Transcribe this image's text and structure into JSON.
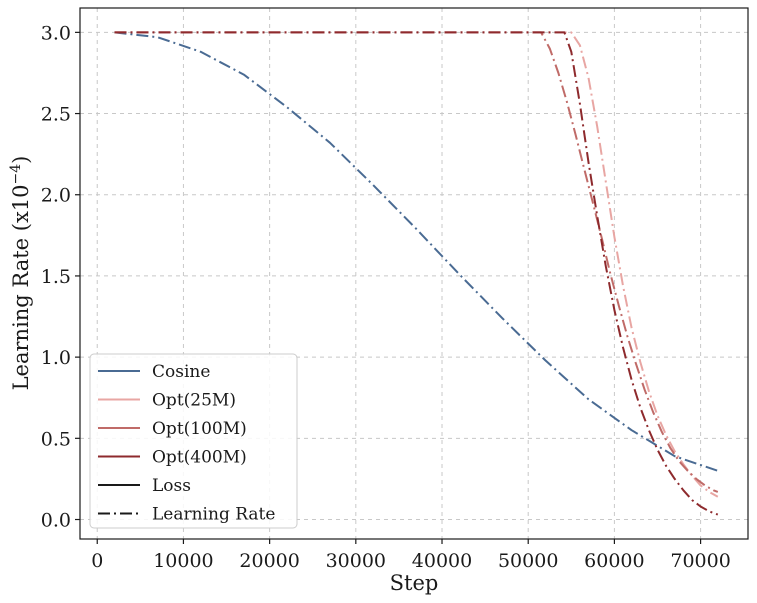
{
  "chart_data": {
    "type": "line",
    "title": "",
    "xlabel": "Step",
    "ylabel": "Learning Rate (x10",
    "ylabel_exp": "−4",
    "ylabel_close": ")",
    "xlim": [
      -2000,
      75500
    ],
    "ylim": [
      -0.12,
      3.15
    ],
    "xticks": [
      0,
      10000,
      20000,
      30000,
      40000,
      50000,
      60000,
      70000
    ],
    "yticks": [
      0.0,
      0.5,
      1.0,
      1.5,
      2.0,
      2.5,
      3.0
    ],
    "xtick_labels": [
      "0",
      "10000",
      "20000",
      "30000",
      "40000",
      "50000",
      "60000",
      "70000"
    ],
    "ytick_labels": [
      "0.0",
      "0.5",
      "1.0",
      "1.5",
      "2.0",
      "2.5",
      "3.0"
    ],
    "grid": true,
    "legend_position": "lower-left",
    "series": [
      {
        "name": "Cosine",
        "color": "#4a6b93",
        "style": "dashdot",
        "x": [
          2000,
          7000,
          12000,
          17000,
          22000,
          27000,
          32000,
          37000,
          42000,
          47000,
          52000,
          57000,
          62000,
          67000,
          72000
        ],
        "y": [
          3.0,
          2.97,
          2.88,
          2.74,
          2.54,
          2.32,
          2.06,
          1.79,
          1.51,
          1.24,
          0.98,
          0.74,
          0.55,
          0.39,
          0.3
        ]
      },
      {
        "name": "Opt(25M)",
        "color": "#e8a6a3",
        "style": "dashdot",
        "x": [
          2000,
          55000,
          56000,
          57000,
          58000,
          59000,
          60000,
          61000,
          62000,
          63000,
          64000,
          65000,
          66000,
          67000,
          68000,
          69000,
          70000,
          71000,
          72000
        ],
        "y": [
          3.0,
          3.0,
          2.92,
          2.72,
          2.42,
          2.08,
          1.74,
          1.44,
          1.18,
          0.97,
          0.79,
          0.64,
          0.52,
          0.42,
          0.34,
          0.27,
          0.21,
          0.17,
          0.14
        ]
      },
      {
        "name": "Opt(100M)",
        "color": "#c06b68",
        "style": "dashdot",
        "x": [
          2000,
          51500,
          52500,
          53500,
          54500,
          55500,
          56500,
          57500,
          58500,
          59500,
          60500,
          61500,
          62500,
          63500,
          64500,
          65500,
          66500,
          67500,
          68500,
          69500,
          70500,
          71500,
          72000
        ],
        "y": [
          3.0,
          3.0,
          2.9,
          2.75,
          2.57,
          2.37,
          2.16,
          1.95,
          1.74,
          1.52,
          1.32,
          1.13,
          0.96,
          0.8,
          0.66,
          0.54,
          0.44,
          0.36,
          0.3,
          0.25,
          0.21,
          0.18,
          0.17
        ]
      },
      {
        "name": "Opt(400M)",
        "color": "#8e2a2d",
        "style": "dashdot",
        "x": [
          2000,
          54200,
          55000,
          56000,
          57000,
          58000,
          59000,
          60000,
          61000,
          62000,
          63000,
          64000,
          65000,
          66000,
          67000,
          68000,
          69000,
          70000,
          71000,
          72000
        ],
        "y": [
          3.0,
          3.0,
          2.88,
          2.56,
          2.2,
          1.87,
          1.56,
          1.29,
          1.06,
          0.86,
          0.69,
          0.55,
          0.43,
          0.33,
          0.25,
          0.18,
          0.12,
          0.08,
          0.05,
          0.03
        ]
      }
    ],
    "legend": [
      {
        "label": "Cosine",
        "color": "#4a6b93",
        "style": "solid"
      },
      {
        "label": "Opt(25M)",
        "color": "#e8a6a3",
        "style": "solid"
      },
      {
        "label": "Opt(100M)",
        "color": "#c06b68",
        "style": "solid"
      },
      {
        "label": "Opt(400M)",
        "color": "#8e2a2d",
        "style": "solid"
      },
      {
        "label": "Loss",
        "color": "#1a1a1a",
        "style": "solid"
      },
      {
        "label": "Learning Rate",
        "color": "#1a1a1a",
        "style": "dashdot"
      }
    ]
  }
}
